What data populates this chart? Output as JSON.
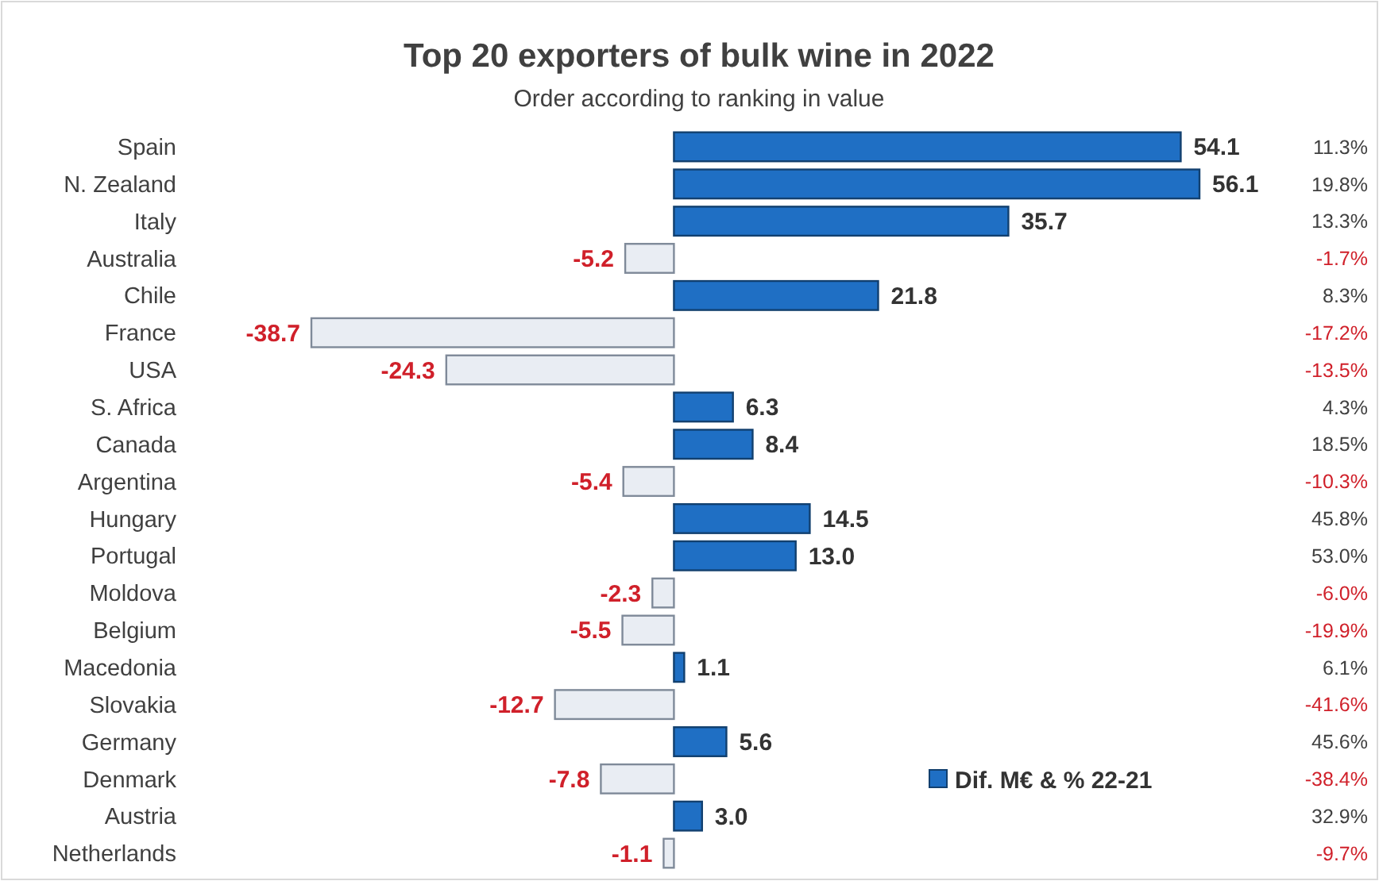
{
  "chart_data": {
    "type": "bar",
    "orientation": "horizontal",
    "title": "Top 20 exporters of bulk wine in 2022",
    "subtitle": "Order according to ranking in value",
    "categories": [
      "Spain",
      "N. Zealand",
      "Italy",
      "Australia",
      "Chile",
      "France",
      "USA",
      "S. Africa",
      "Canada",
      "Argentina",
      "Hungary",
      "Portugal",
      "Moldova",
      "Belgium",
      "Macedonia",
      "Slovakia",
      "Germany",
      "Denmark",
      "Austria",
      "Netherlands"
    ],
    "series": [
      {
        "name": "Dif. M€ & % 22-21",
        "color": "#1f6fc4",
        "values": [
          54.1,
          56.1,
          35.7,
          -5.2,
          21.8,
          -38.7,
          -24.3,
          6.3,
          8.4,
          -5.4,
          14.5,
          13.0,
          -2.3,
          -5.5,
          1.1,
          -12.7,
          5.6,
          -7.8,
          3.0,
          -1.1
        ],
        "colors": [
          "#1f6fc4",
          "#1f6fc4",
          "#1f6fc4",
          "#e9edf3",
          "#1f6fc4",
          "#e9edf3",
          "#e9edf3",
          "#1f6fc4",
          "#1f6fc4",
          "#e9edf3",
          "#1f6fc4",
          "#1f6fc4",
          "#e9edf3",
          "#e9edf3",
          "#1f6fc4",
          "#e9edf3",
          "#1f6fc4",
          "#e9edf3",
          "#1f6fc4",
          "#e9edf3"
        ],
        "value_labels": [
          "54.1",
          "56.1",
          "35.7",
          "-5.2",
          "21.8",
          "-38.7",
          "-24.3",
          "6.3",
          "8.4",
          "-5.4",
          "14.5",
          "13.0",
          "-2.3",
          "-5.5",
          "1.1",
          "-12.7",
          "5.6",
          "-7.8",
          "3.0",
          "-1.1"
        ]
      }
    ],
    "annotations": [
      "11.3%",
      "19.8%",
      "13.3%",
      "-1.7%",
      "8.3%",
      "-17.2%",
      "-13.5%",
      "4.3%",
      "18.5%",
      "-10.3%",
      "45.8%",
      "53.0%",
      "-6.0%",
      "-19.9%",
      "6.1%",
      "-41.6%",
      "45.6%",
      "-38.4%",
      "32.9%",
      "-9.7%"
    ],
    "legend": "bottom right"
  }
}
